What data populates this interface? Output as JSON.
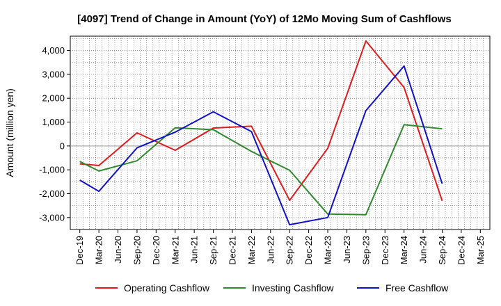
{
  "chart_data": {
    "type": "line",
    "title": "[4097]  Trend of Change in Amount (YoY) of 12Mo Moving Sum of Cashflows",
    "xlabel": "",
    "ylabel": "Amount (million yen)",
    "ylim": [
      -3500,
      4600
    ],
    "yticks": [
      -3000,
      -2000,
      -1000,
      0,
      1000,
      2000,
      3000,
      4000
    ],
    "ytick_labels": [
      "-3,000",
      "-2,000",
      "-1,000",
      "0",
      "1,000",
      "2,000",
      "3,000",
      "4,000"
    ],
    "categories": [
      "Dec-19",
      "Mar-20",
      "Jun-20",
      "Sep-20",
      "Dec-20",
      "Mar-21",
      "Jun-21",
      "Sep-21",
      "Dec-21",
      "Mar-22",
      "Jun-22",
      "Sep-22",
      "Dec-22",
      "Mar-23",
      "Jun-23",
      "Sep-23",
      "Dec-23",
      "Mar-24",
      "Jun-24",
      "Sep-24",
      "Dec-24",
      "Mar-25"
    ],
    "grid": true,
    "legend_position": "bottom",
    "series": [
      {
        "name": "Operating Cashflow",
        "color": "#e31a1c",
        "values": [
          -750,
          -820,
          null,
          550,
          null,
          -180,
          null,
          750,
          null,
          830,
          null,
          -2280,
          null,
          -100,
          null,
          4400,
          null,
          2450,
          null,
          -2300,
          null,
          null
        ]
      },
      {
        "name": "Investing Cashflow",
        "color": "#2e8b2e",
        "values": [
          -650,
          -1050,
          null,
          -620,
          null,
          760,
          null,
          680,
          null,
          -230,
          null,
          -1020,
          null,
          -2850,
          null,
          -2880,
          null,
          890,
          null,
          720,
          null,
          null
        ]
      },
      {
        "name": "Free Cashflow",
        "color": "#1010cc",
        "values": [
          -1430,
          -1900,
          null,
          -80,
          null,
          580,
          null,
          1430,
          null,
          600,
          null,
          -3300,
          null,
          -3000,
          null,
          1480,
          null,
          3350,
          null,
          -1580,
          null,
          null
        ]
      }
    ]
  }
}
